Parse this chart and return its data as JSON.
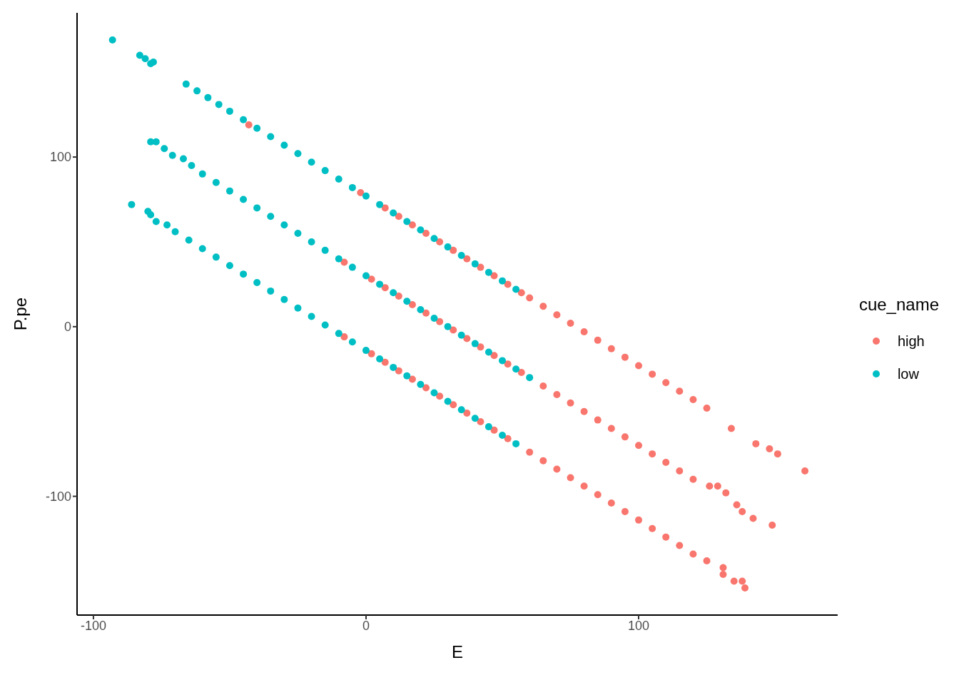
{
  "chart_data": {
    "type": "scatter",
    "xlabel": "E",
    "ylabel": "P.pe",
    "legend_title": "cue_name",
    "legend": "right",
    "grid": false,
    "marker": "circle",
    "xlim": [
      -106,
      173
    ],
    "ylim": [
      -170,
      185
    ],
    "xticks": [
      -100,
      0,
      100
    ],
    "yticks": [
      -100,
      0,
      100
    ],
    "series": [
      {
        "name": "high",
        "color": "#f8766d",
        "x": [
          -43,
          -2,
          7,
          12,
          17,
          22,
          27,
          32,
          37,
          42,
          47,
          52,
          57,
          60,
          65,
          70,
          75,
          80,
          85,
          90,
          95,
          100,
          105,
          110,
          115,
          120,
          125,
          134,
          143,
          148,
          151,
          161,
          -8,
          2,
          7,
          12,
          17,
          22,
          27,
          32,
          37,
          42,
          47,
          52,
          57,
          65,
          70,
          75,
          80,
          85,
          90,
          95,
          100,
          105,
          110,
          115,
          120,
          126,
          129,
          132,
          136,
          138,
          142,
          149,
          -8,
          2,
          7,
          12,
          17,
          22,
          27,
          32,
          37,
          42,
          47,
          52,
          60,
          65,
          70,
          75,
          80,
          85,
          90,
          95,
          100,
          105,
          110,
          115,
          120,
          125,
          131,
          131,
          135,
          138,
          139
        ],
        "values": [
          119,
          79,
          70,
          65,
          60,
          55,
          50,
          45,
          40,
          35,
          30,
          25,
          20,
          17,
          12,
          7,
          2,
          -3,
          -8,
          -13,
          -18,
          -23,
          -28,
          -33,
          -38,
          -43,
          -48,
          -60,
          -69,
          -72,
          -75,
          -85,
          38,
          28,
          23,
          18,
          13,
          8,
          3,
          -2,
          -7,
          -12,
          -17,
          -22,
          -27,
          -35,
          -40,
          -45,
          -50,
          -55,
          -60,
          -65,
          -70,
          -75,
          -80,
          -85,
          -90,
          -94,
          -94,
          -98,
          -105,
          -109,
          -113,
          -117,
          -6,
          -16,
          -21,
          -26,
          -31,
          -36,
          -41,
          -46,
          -51,
          -56,
          -61,
          -66,
          -74,
          -79,
          -84,
          -89,
          -94,
          -99,
          -104,
          -109,
          -114,
          -119,
          -124,
          -129,
          -134,
          -138,
          -142,
          -146,
          -150,
          -150,
          -154
        ]
      },
      {
        "name": "low",
        "color": "#00bfc4",
        "x": [
          -93,
          -83,
          -81,
          -79,
          -78,
          -66,
          -62,
          -58,
          -54,
          -50,
          -45,
          -40,
          -35,
          -30,
          -25,
          -20,
          -15,
          -10,
          -5,
          0,
          5,
          10,
          15,
          20,
          25,
          30,
          35,
          40,
          45,
          50,
          55,
          -79,
          -77,
          -74,
          -71,
          -67,
          -64,
          -60,
          -55,
          -50,
          -45,
          -40,
          -35,
          -30,
          -25,
          -20,
          -15,
          -10,
          -5,
          0,
          5,
          10,
          15,
          20,
          25,
          30,
          35,
          40,
          45,
          50,
          55,
          60,
          -86,
          -80,
          -79,
          -77,
          -73,
          -70,
          -65,
          -60,
          -55,
          -50,
          -45,
          -40,
          -35,
          -30,
          -25,
          -20,
          -15,
          -10,
          -5,
          0,
          5,
          10,
          15,
          20,
          25,
          30,
          35,
          40,
          45,
          50,
          55
        ],
        "values": [
          169,
          160,
          158,
          155,
          156,
          143,
          139,
          135,
          131,
          127,
          122,
          117,
          112,
          107,
          102,
          97,
          92,
          87,
          82,
          77,
          72,
          67,
          62,
          57,
          52,
          47,
          42,
          37,
          32,
          27,
          22,
          109,
          109,
          105,
          101,
          99,
          95,
          90,
          85,
          80,
          75,
          70,
          65,
          60,
          55,
          50,
          45,
          40,
          35,
          30,
          25,
          20,
          15,
          10,
          5,
          0,
          -5,
          -10,
          -15,
          -20,
          -25,
          -30,
          72,
          68,
          66,
          62,
          60,
          56,
          51,
          46,
          41,
          36,
          31,
          26,
          21,
          16,
          11,
          6,
          1,
          -4,
          -9,
          -14,
          -19,
          -24,
          -29,
          -34,
          -39,
          -44,
          -49,
          -54,
          -59,
          -64,
          -69
        ]
      }
    ]
  }
}
